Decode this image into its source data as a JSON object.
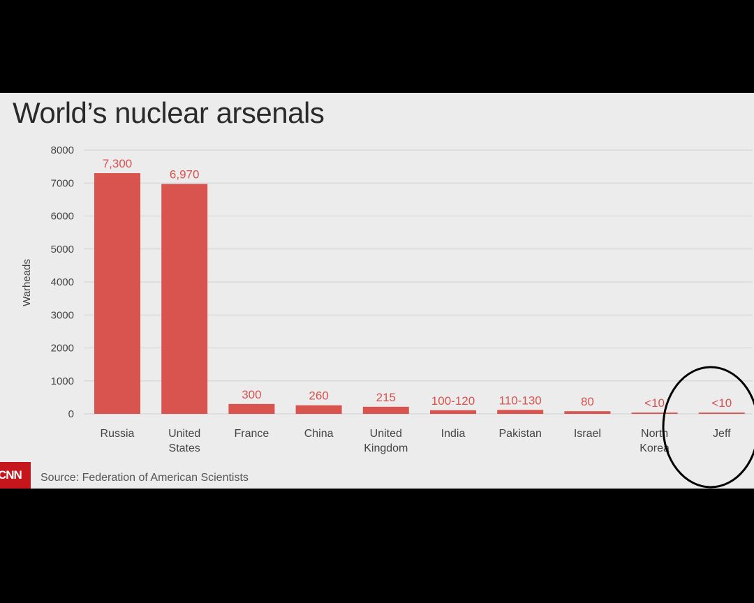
{
  "chart_data": {
    "type": "bar",
    "title": "World’s nuclear arsenals",
    "ylabel": "Warheads",
    "xlabel": "",
    "ylim": [
      0,
      8000
    ],
    "yticks": [
      0,
      1000,
      2000,
      3000,
      4000,
      5000,
      6000,
      7000,
      8000
    ],
    "grid": true,
    "categories": [
      [
        "Russia"
      ],
      [
        "United",
        "States"
      ],
      [
        "France"
      ],
      [
        "China"
      ],
      [
        "United",
        "Kingdom"
      ],
      [
        "India"
      ],
      [
        "Pakistan"
      ],
      [
        "Israel"
      ],
      [
        "North",
        "Korea"
      ],
      [
        "Jeff"
      ]
    ],
    "values": [
      7300,
      6970,
      300,
      260,
      215,
      110,
      120,
      80,
      10,
      10
    ],
    "data_labels": [
      "7,300",
      "6,970",
      "300",
      "260",
      "215",
      "100-120",
      "110-130",
      "80",
      "<10",
      "<10"
    ],
    "bar_color": "#d9534f",
    "annotation": "hand-drawn circle around Jeff"
  },
  "footer": {
    "source": "Source: Federation of American Scientists",
    "logo": "CNN"
  }
}
